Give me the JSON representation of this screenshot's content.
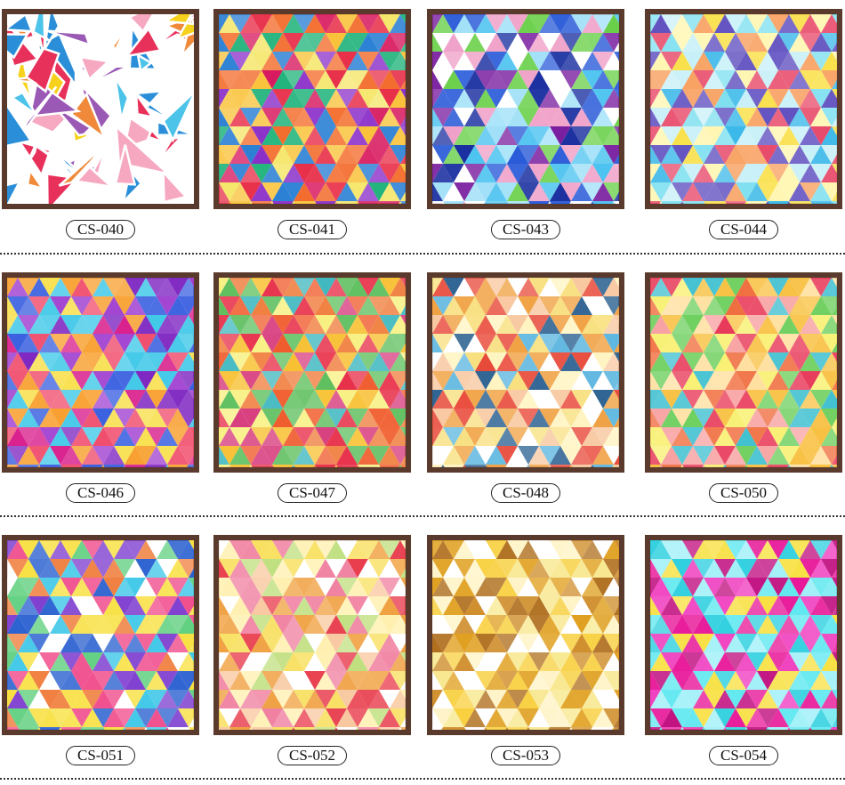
{
  "products": [
    {
      "code": "CS-040",
      "style": "mosaic",
      "palette": [
        "#e8315a",
        "#f7d21c",
        "#2a8fd8",
        "#f08a3a",
        "#f6a8c0",
        "#9b59b6",
        "#4cc3e8"
      ]
    },
    {
      "code": "CS-041",
      "style": "triangles",
      "palette": [
        "#e8304a",
        "#f36b2a",
        "#f9c23a",
        "#8b2fc9",
        "#2a7fd4",
        "#1fb37a",
        "#f5e66a",
        "#d81b60"
      ]
    },
    {
      "code": "CS-043",
      "style": "triangles",
      "palette": [
        "#2a5bd8",
        "#4cc3f0",
        "#1a2fa0",
        "#6ad04a",
        "#a0e0f8",
        "#7a1fa0",
        "#f0a0c8",
        "#ffffff"
      ]
    },
    {
      "code": "CS-044",
      "style": "triangles",
      "palette": [
        "#7fe0f0",
        "#3ab8e8",
        "#f9e04a",
        "#f8a060",
        "#c8f0f8",
        "#e84a6a",
        "#fff6b0",
        "#6050c0"
      ]
    },
    {
      "code": "CS-046",
      "style": "triangles",
      "palette": [
        "#7a1fc0",
        "#d81b8a",
        "#3a60e0",
        "#f04a6a",
        "#f8a030",
        "#40c8e8",
        "#a040d0",
        "#f8e050"
      ]
    },
    {
      "code": "CS-047",
      "style": "triangles",
      "palette": [
        "#f05a2a",
        "#f8c030",
        "#e8304a",
        "#40b8c0",
        "#f8f080",
        "#f08040",
        "#60c060",
        "#d84080"
      ]
    },
    {
      "code": "CS-048",
      "style": "triangles",
      "palette": [
        "#f8e080",
        "#fff4c0",
        "#f0a040",
        "#60b8e0",
        "#e84a3a",
        "#f8c8a0",
        "#2a6090",
        "#ffffff"
      ]
    },
    {
      "code": "CS-050",
      "style": "triangles",
      "palette": [
        "#f8c040",
        "#f06a3a",
        "#f8f070",
        "#e83a5a",
        "#70d060",
        "#f8a0a0",
        "#40c0d0",
        "#ffe0a0"
      ]
    },
    {
      "code": "CS-051",
      "style": "triangles",
      "palette": [
        "#f04a8a",
        "#40c8e8",
        "#f8e040",
        "#8040d0",
        "#f08040",
        "#60d080",
        "#2a60d0",
        "#ffffff"
      ]
    },
    {
      "code": "CS-052",
      "style": "triangles",
      "palette": [
        "#f8e060",
        "#fff0b0",
        "#f0a040",
        "#e83a4a",
        "#f8c8a0",
        "#c0e080",
        "#ffffff",
        "#f080a0"
      ]
    },
    {
      "code": "CS-053",
      "style": "triangles",
      "palette": [
        "#f8d040",
        "#e0a020",
        "#fff4c8",
        "#ffffff",
        "#b07020",
        "#f8e890",
        "#d09030"
      ]
    },
    {
      "code": "CS-054",
      "style": "triangles",
      "palette": [
        "#e81a9a",
        "#30d0e0",
        "#c01080",
        "#f8e040",
        "#60e8f0",
        "#a0f0f8",
        "#f040c0"
      ]
    }
  ]
}
